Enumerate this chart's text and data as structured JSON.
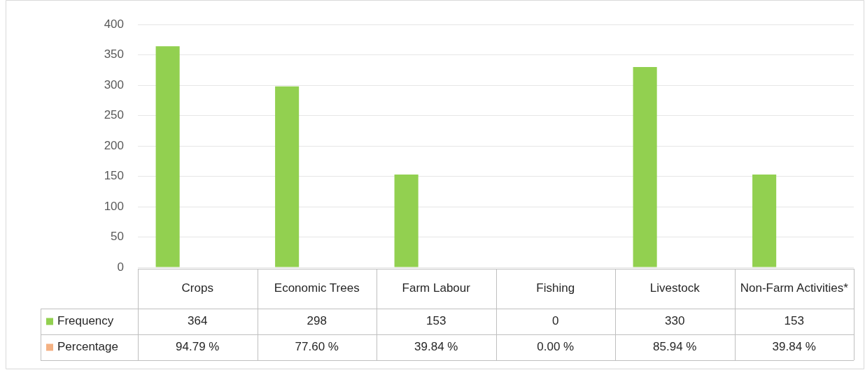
{
  "chart_data": {
    "type": "bar",
    "categories": [
      "Crops",
      "Economic Trees",
      "Farm Labour",
      "Fishing",
      "Livestock",
      "Non-Farm Activities*"
    ],
    "series": [
      {
        "name": "Frequency",
        "color": "#92d050",
        "values": [
          364,
          298,
          153,
          0,
          330,
          153
        ]
      },
      {
        "name": "Percentage",
        "color": "#f4b183",
        "values": [
          null,
          null,
          null,
          null,
          null,
          null
        ],
        "value_labels": [
          "94.79 %",
          "77.60 %",
          "39.84 %",
          "0.00 %",
          "85.94 %",
          "39.84 %"
        ]
      }
    ],
    "ylim": [
      0,
      400
    ],
    "yticks": [
      0,
      50,
      100,
      150,
      200,
      250,
      300,
      350,
      400
    ],
    "grid": "y",
    "legend": "bottom",
    "data_labels": true
  }
}
